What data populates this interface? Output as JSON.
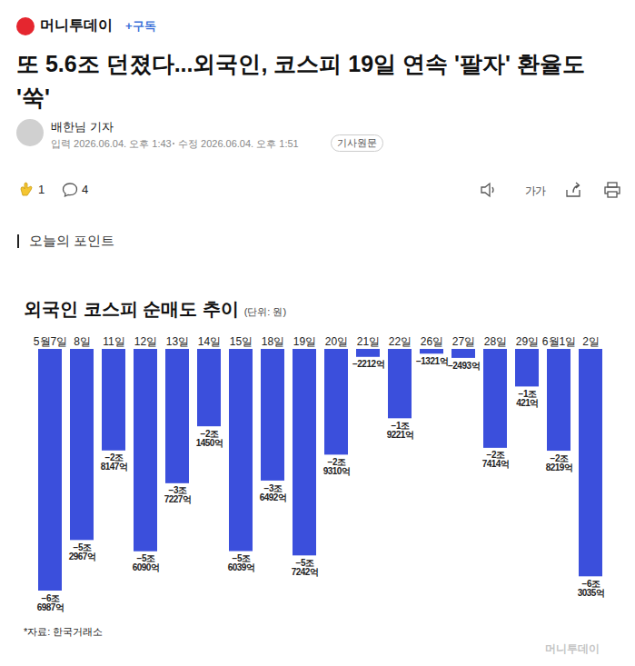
{
  "article": {
    "publisher": "머니투데이",
    "subscribe": "+구독",
    "headline": "또 5.6조 던졌다...외국인, 코스피 19일 연속 '팔자' 환율도 '쑥'",
    "reporter": "배한님 기자",
    "published": "입력 2026.06.04. 오후 1:43",
    "modified": "수정 2026.06.04. 오후 1:51",
    "source_link": "기사원문",
    "like_count": 1,
    "comment_count": 4,
    "font_button": "가가",
    "section": "오늘의 포인트",
    "watermark": "머니투데이"
  },
  "chart_data": {
    "type": "bar",
    "title": "외국인 코스피 순매도 추이",
    "subtitle": "(단위: 원)",
    "caption": "*자료: 한국거래소",
    "categories": [
      "5월7일",
      "8일",
      "11일",
      "12일",
      "13일",
      "14일",
      "15일",
      "18일",
      "19일",
      "20일",
      "21일",
      "22일",
      "26일",
      "27일",
      "28일",
      "29일",
      "6월1일",
      "2일"
    ],
    "values": [
      -6698700000000,
      -5296700000000,
      -2814700000000,
      -5609000000000,
      -3722700000000,
      -2145000000000,
      -5603900000000,
      -3649200000000,
      -5724200000000,
      -2931000000000,
      -221200000000,
      -1922100000000,
      -132100000000,
      -249300000000,
      -2741400000000,
      -1042100000000,
      -2821900000000,
      -6303500000000
    ],
    "value_labels": [
      "−6조 6987억",
      "−5조 2967억",
      "−2조 8147억",
      "−5조 6090억",
      "−3조 7227억",
      "−2조 1450억",
      "−5조 6039억",
      "−3조 6492억",
      "−5조 7242억",
      "−2조 9310억",
      "−2212억",
      "−1조 9221억",
      "−1321억",
      "−2493억",
      "−2조 7414억",
      "−1조 421억",
      "−2조 8219억",
      "−6조 3035억"
    ],
    "color": "#3b4fdc",
    "ylim": [
      -6698700000000,
      0
    ],
    "data_labels": true,
    "tick_labels": "x",
    "grid": false
  }
}
